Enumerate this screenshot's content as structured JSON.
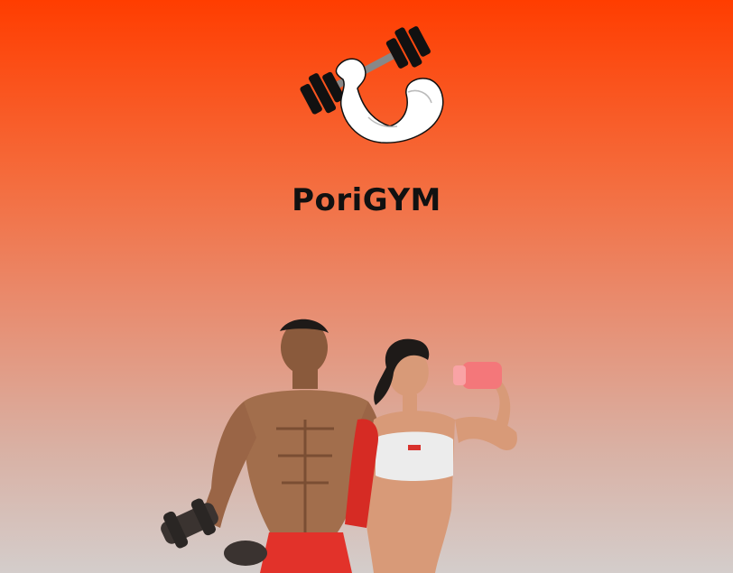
{
  "app": {
    "title": "PoriGYM",
    "logo_icon": "dumbbell-arm-icon"
  },
  "hero": {
    "image": "fitness-couple-illustration"
  },
  "colors": {
    "gradient_top": "#ff3d00",
    "gradient_bottom": "#d4cdcb",
    "title_text": "#111111"
  }
}
